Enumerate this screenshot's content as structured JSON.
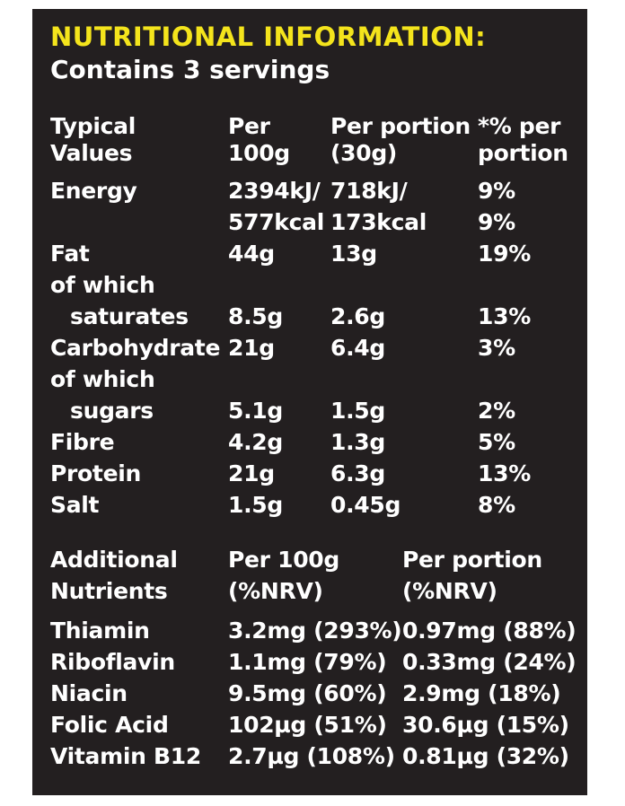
{
  "title": "NUTRITIONAL INFORMATION:",
  "subtitle": "Contains 3 servings",
  "typical_header": {
    "c0": [
      "Typical",
      "Values"
    ],
    "c1": [
      "Per",
      "100g"
    ],
    "c2": [
      "Per portion",
      "(30g)"
    ],
    "c3": [
      "*% per",
      "portion"
    ]
  },
  "typical_rows": [
    {
      "label": "Energy",
      "per100": "2394kJ/",
      "portion": "718kJ/",
      "pct": "9%"
    },
    {
      "label": "",
      "per100": "577kcal",
      "portion": "173kcal",
      "pct": "9%"
    },
    {
      "label": "Fat",
      "per100": "44g",
      "portion": "13g",
      "pct": "19%"
    },
    {
      "label": "of which",
      "per100": "",
      "portion": "",
      "pct": ""
    },
    {
      "label": "saturates",
      "per100": "8.5g",
      "portion": "2.6g",
      "pct": "13%"
    },
    {
      "label": "Carbohydrate",
      "per100": "21g",
      "portion": "6.4g",
      "pct": "3%"
    },
    {
      "label": "of which",
      "per100": "",
      "portion": "",
      "pct": ""
    },
    {
      "label": "sugars",
      "per100": "5.1g",
      "portion": "1.5g",
      "pct": "2%"
    },
    {
      "label": "Fibre",
      "per100": "4.2g",
      "portion": "1.3g",
      "pct": "5%"
    },
    {
      "label": "Protein",
      "per100": "21g",
      "portion": "6.3g",
      "pct": "13%"
    },
    {
      "label": "Salt",
      "per100": "1.5g",
      "portion": "0.45g",
      "pct": "8%"
    }
  ],
  "additional_header": {
    "c0": [
      "Additional",
      "Nutrients"
    ],
    "c1": [
      "Per 100g",
      "(%NRV)"
    ],
    "c2": [
      "Per portion",
      "(%NRV)"
    ]
  },
  "additional_rows": [
    {
      "label": "Thiamin",
      "per100": "3.2mg (293%)",
      "portion": "0.97mg (88%)"
    },
    {
      "label": "Riboflavin",
      "per100": "1.1mg (79%)",
      "portion": "0.33mg (24%)"
    },
    {
      "label": "Niacin",
      "per100": "9.5mg (60%)",
      "portion": "2.9mg (18%)"
    },
    {
      "label": "Folic Acid",
      "per100": "102µg (51%)",
      "portion": "30.6µg (15%)"
    },
    {
      "label": "Vitamin B12",
      "per100": "2.7µg (108%)",
      "portion": "0.81µg (32%)"
    }
  ],
  "colors": {
    "panel_bg": "#231f20",
    "title": "#f4e41c",
    "text": "#ffffff"
  }
}
